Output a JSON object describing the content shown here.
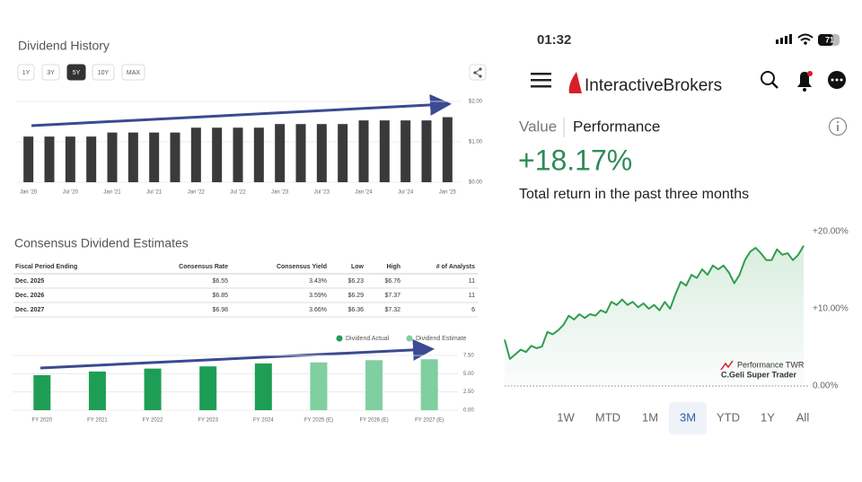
{
  "status_bar": {
    "time": "01:32",
    "battery": "71"
  },
  "app_header": {
    "logo": "InteractiveBrokers"
  },
  "tabs": [
    "Value",
    "Performance"
  ],
  "performance": {
    "value_text": "+18.17%",
    "caption": "Total return in the past three months"
  },
  "range_buttons": [
    "1W",
    "MTD",
    "1M",
    "3M",
    "YTD",
    "1Y",
    "All"
  ],
  "selected_range": "3M",
  "history_buttons": [
    "1Y",
    "3Y",
    "5Y",
    "10Y",
    "MAX"
  ],
  "selected_history": "5Y",
  "table": {
    "title": "Consensus Dividend Estimates",
    "header": [
      "Fiscal Period Ending",
      "Consensus Rate",
      "Consensus Yield",
      "Low",
      "High",
      "# of Analysts"
    ],
    "rows": [
      [
        "Dec. 2025",
        "$6.55",
        "3.43%",
        "$6.23",
        "$6.76",
        11
      ],
      [
        "Dec. 2026",
        "$6.85",
        "3.59%",
        "$6.29",
        "$7.37",
        11
      ],
      [
        "Dec. 2027",
        "$6.98",
        "3.66%",
        "$6.36",
        "$7.32",
        6
      ]
    ]
  },
  "chart_data": [
    {
      "type": "bar",
      "title": "Dividend History",
      "categories": [
        "Jan '20",
        null,
        "Jul '20",
        null,
        "Jan '21",
        null,
        "Jul '21",
        null,
        "Jan '22",
        null,
        "Jul '22",
        null,
        "Jan '23",
        null,
        "Jul '23",
        null,
        "Jan '24",
        null,
        "Jul '24",
        null,
        "Jan '25"
      ],
      "values": [
        1.13,
        1.13,
        1.13,
        1.13,
        1.23,
        1.23,
        1.23,
        1.23,
        1.35,
        1.35,
        1.35,
        1.35,
        1.44,
        1.44,
        1.44,
        1.44,
        1.53,
        1.53,
        1.53,
        1.53,
        1.61
      ],
      "color": "#3a3a3c",
      "ylim": [
        0,
        2
      ],
      "yticks": [
        {
          "value": 0,
          "label": "$0.00"
        },
        {
          "value": 1,
          "label": "$1.00"
        },
        {
          "value": 2,
          "label": "$2.00"
        }
      ],
      "grid": true
    },
    {
      "type": "bar",
      "categories": [
        "FY 2020",
        "FY 2021",
        "FY 2022",
        "FY 2023",
        "FY 2024",
        "FY 2025 (E)",
        "FY 2026 (E)",
        "FY 2027 (E)"
      ],
      "series": [
        {
          "name": "Dividend Actual",
          "color": "#1e9e55",
          "values": [
            4.8,
            5.3,
            5.7,
            6.0,
            6.4,
            null,
            null,
            null
          ]
        },
        {
          "name": "Dividend Estimate",
          "color": "#7fcfa0",
          "values": [
            null,
            null,
            null,
            null,
            null,
            6.55,
            6.85,
            6.98
          ]
        }
      ],
      "ylim": [
        0,
        7.5
      ],
      "yticks": [
        {
          "value": 0,
          "label": "0.00"
        },
        {
          "value": 2.5,
          "label": "2.50"
        },
        {
          "value": 5,
          "label": "5.00"
        },
        {
          "value": 7.5,
          "label": "7.50"
        }
      ],
      "grid": true,
      "legend": "top-right"
    },
    {
      "type": "line",
      "series": [
        {
          "name": "Performance TWR",
          "color": "#2e9e4f",
          "values": [
            6.0,
            3.5,
            4.1,
            4.7,
            4.4,
            5.2,
            4.9,
            5.1,
            7.0,
            6.7,
            7.2,
            7.9,
            9.1,
            8.6,
            9.3,
            8.8,
            9.3,
            9.1,
            9.8,
            9.5,
            10.9,
            10.5,
            11.2,
            10.5,
            10.9,
            10.2,
            10.7,
            10.0,
            10.5,
            9.8,
            10.9,
            10.0,
            11.9,
            13.5,
            13.0,
            14.4,
            14.0,
            15.1,
            14.4,
            15.6,
            15.1,
            15.6,
            14.7,
            13.3,
            14.4,
            16.3,
            17.4,
            17.9,
            17.2,
            16.3,
            16.3,
            17.7,
            17.0,
            17.2,
            16.3,
            17.0,
            18.17
          ]
        }
      ],
      "annotation": "C.Geli Super Trader",
      "ylim": [
        0,
        20
      ],
      "yticks": [
        {
          "value": 0,
          "label": "0.00%"
        },
        {
          "value": 10,
          "label": "+10.00%"
        },
        {
          "value": 20,
          "label": "+20.00%"
        }
      ],
      "grid": false,
      "legend": "bottom-right"
    }
  ]
}
